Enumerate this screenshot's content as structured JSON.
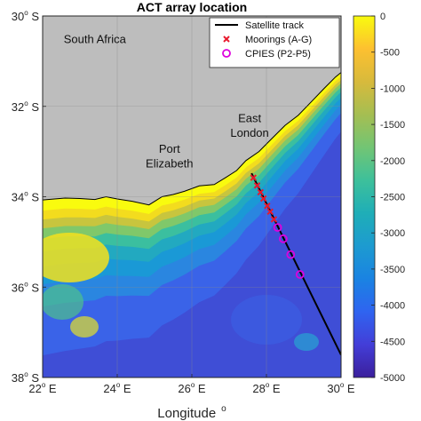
{
  "figure": {
    "title": "ACT array location",
    "xlabel": "Longitude",
    "xlabel_superscript": "o"
  },
  "map": {
    "lon_range": [
      22,
      30
    ],
    "lat_range": [
      -38,
      -30
    ],
    "x_ticks": [
      {
        "value": 22,
        "num": "22",
        "unit": "E"
      },
      {
        "value": 24,
        "num": "24",
        "unit": "E"
      },
      {
        "value": 26,
        "num": "26",
        "unit": "E"
      },
      {
        "value": 28,
        "num": "28",
        "unit": "E"
      },
      {
        "value": 30,
        "num": "30",
        "unit": "E"
      }
    ],
    "y_ticks": [
      {
        "value": -30,
        "num": "30",
        "unit": "S"
      },
      {
        "value": -32,
        "num": "32",
        "unit": "S"
      },
      {
        "value": -34,
        "num": "34",
        "unit": "S"
      },
      {
        "value": -36,
        "num": "36",
        "unit": "S"
      },
      {
        "value": -38,
        "num": "38",
        "unit": "S"
      }
    ],
    "tick_superscript": "o",
    "grid": true,
    "land_color": "#bdbdbd",
    "coastline": [
      [
        22.0,
        -34.07
      ],
      [
        22.6,
        -34.03
      ],
      [
        23.0,
        -34.04
      ],
      [
        23.4,
        -34.06
      ],
      [
        23.7,
        -34.0
      ],
      [
        24.0,
        -34.05
      ],
      [
        24.4,
        -34.1
      ],
      [
        24.85,
        -34.18
      ],
      [
        25.2,
        -34.0
      ],
      [
        25.5,
        -33.95
      ],
      [
        25.8,
        -33.88
      ],
      [
        26.2,
        -33.76
      ],
      [
        26.6,
        -33.73
      ],
      [
        26.9,
        -33.58
      ],
      [
        27.2,
        -33.42
      ],
      [
        27.45,
        -33.2
      ],
      [
        27.8,
        -33.0
      ],
      [
        28.1,
        -32.75
      ],
      [
        28.5,
        -32.42
      ],
      [
        28.85,
        -32.2
      ],
      [
        29.2,
        -31.9
      ],
      [
        29.55,
        -31.6
      ],
      [
        29.85,
        -31.35
      ],
      [
        30.0,
        -31.25
      ]
    ],
    "place_labels": [
      {
        "text": "South Africa",
        "lon": 23.4,
        "lat": -30.6
      },
      {
        "text": "Port",
        "lon": 25.4,
        "lat": -33.03
      },
      {
        "text": "Elizabeth",
        "lon": 25.4,
        "lat": -33.35
      },
      {
        "text": "East",
        "lon": 27.55,
        "lat": -32.35
      },
      {
        "text": "London",
        "lon": 27.55,
        "lat": -32.67
      }
    ],
    "satellite_track": [
      [
        27.6,
        -33.48
      ],
      [
        30.0,
        -37.5
      ]
    ],
    "moorings": [
      [
        27.65,
        -33.58
      ],
      [
        27.75,
        -33.75
      ],
      [
        27.84,
        -33.9
      ],
      [
        27.92,
        -34.04
      ],
      [
        28.02,
        -34.2
      ],
      [
        28.1,
        -34.33
      ],
      [
        28.2,
        -34.5
      ]
    ],
    "cpies": [
      [
        28.3,
        -34.68
      ],
      [
        28.45,
        -34.93
      ],
      [
        28.65,
        -35.28
      ],
      [
        28.9,
        -35.72
      ]
    ],
    "marker_color": "#e8192c",
    "cpies_color": "#dd00dd",
    "track_color": "#000000"
  },
  "legend": {
    "position": "top-right",
    "entries": [
      {
        "label": "Satellite track",
        "symbol": "line"
      },
      {
        "label": "Moorings (A-G)",
        "symbol": "x"
      },
      {
        "label": "CPIES (P2-P5)",
        "symbol": "circle"
      }
    ]
  },
  "colorbar": {
    "range": [
      -5000,
      0
    ],
    "ticks": [
      "0",
      "-500",
      "-1000",
      "-1500",
      "-2000",
      "-2500",
      "-3000",
      "-3500",
      "-4000",
      "-4500",
      "-5000"
    ],
    "colors": [
      "#f9fb0e",
      "#fdc030",
      "#d7ba3c",
      "#a5be52",
      "#72c574",
      "#3dc09b",
      "#1faeb7",
      "#1d9bd0",
      "#1a83e2",
      "#2f64f0",
      "#433ed8",
      "#3b1f9c"
    ]
  }
}
